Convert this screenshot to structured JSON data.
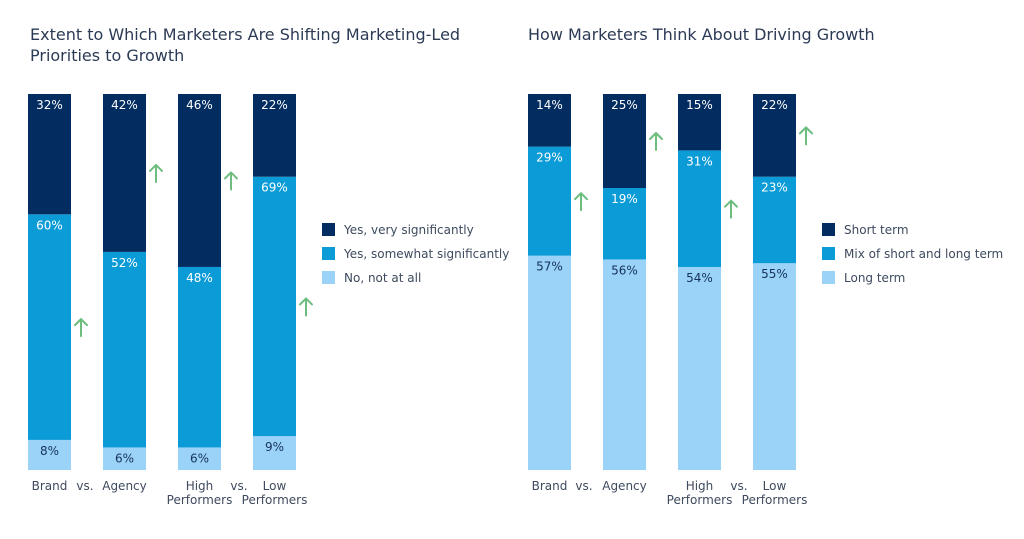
{
  "chart_data": [
    {
      "type": "bar",
      "stacked": true,
      "title": "Extent to Which Marketers Are Shifting Marketing-Led Priorities to Growth",
      "categories": [
        [
          "Brand"
        ],
        [
          "Agency"
        ],
        [
          "High",
          "Performers"
        ],
        [
          "Low",
          "Performers"
        ]
      ],
      "separators": [
        "vs.",
        "",
        "vs."
      ],
      "series": [
        {
          "name": "No, not at all",
          "color": "#9ad3f7",
          "values": [
            8,
            6,
            6,
            9
          ]
        },
        {
          "name": "Yes, somewhat significantly",
          "color": "#0b9bd6",
          "values": [
            60,
            52,
            48,
            69
          ]
        },
        {
          "name": "Yes, very significantly",
          "color": "#032d60",
          "values": [
            32,
            42,
            46,
            22
          ]
        }
      ],
      "legend": [
        "Yes, very significantly",
        "Yes, somewhat significantly",
        "No, not at all"
      ],
      "value_suffix": "%",
      "ylim": [
        0,
        100
      ],
      "arrows": [
        {
          "bar": 0,
          "series": "Yes, somewhat significantly"
        },
        {
          "bar": 1,
          "series": "Yes, very significantly"
        },
        {
          "bar": 2,
          "series": "Yes, very significantly"
        },
        {
          "bar": 3,
          "series": "Yes, somewhat significantly"
        }
      ]
    },
    {
      "type": "bar",
      "stacked": true,
      "title": "How Marketers Think About Driving Growth",
      "categories": [
        [
          "Brand"
        ],
        [
          "Agency"
        ],
        [
          "High",
          "Performers"
        ],
        [
          "Low",
          "Performers"
        ]
      ],
      "separators": [
        "vs.",
        "",
        "vs."
      ],
      "series": [
        {
          "name": "Long term",
          "color": "#9ad3f7",
          "values": [
            57,
            56,
            54,
            55
          ]
        },
        {
          "name": "Mix of short and long term",
          "color": "#0b9bd6",
          "values": [
            29,
            19,
            31,
            23
          ]
        },
        {
          "name": "Short term",
          "color": "#032d60",
          "values": [
            14,
            25,
            15,
            22
          ]
        }
      ],
      "legend": [
        "Short term",
        "Mix of short and long term",
        "Long term"
      ],
      "value_suffix": "%",
      "ylim": [
        0,
        100
      ],
      "arrows": [
        {
          "bar": 0,
          "series": "Mix of short and long term"
        },
        {
          "bar": 1,
          "series": "Short term"
        },
        {
          "bar": 2,
          "series": "Mix of short and long term"
        },
        {
          "bar": 3,
          "series": "Short term"
        }
      ]
    }
  ],
  "colors": {
    "arrow": "#6dbd7e",
    "label_dark": "#16325c",
    "label_light": "#ffffff"
  }
}
